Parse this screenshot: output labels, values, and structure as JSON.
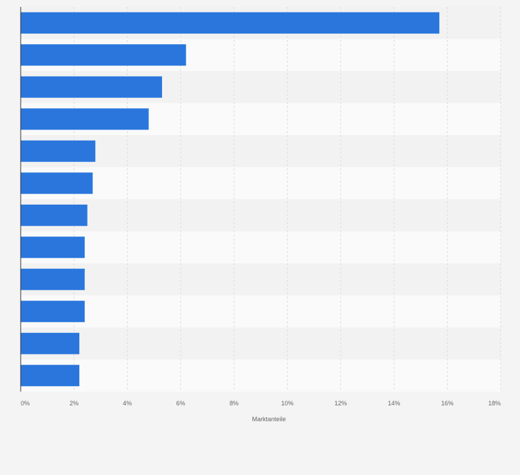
{
  "chart_data": {
    "type": "bar",
    "orientation": "horizontal",
    "categories": [
      "",
      "",
      "",
      "",
      "",
      "",
      "",
      "",
      "",
      "",
      "",
      ""
    ],
    "values": [
      15.7,
      6.2,
      5.3,
      4.8,
      2.8,
      2.7,
      2.5,
      2.4,
      2.4,
      2.4,
      2.2,
      2.2
    ],
    "xlabel": "Marktanteile",
    "ylabel": "",
    "xlim": [
      0,
      18
    ],
    "x_ticks": [
      "0%",
      "2%",
      "4%",
      "6%",
      "8%",
      "10%",
      "12%",
      "14%",
      "16%",
      "18%"
    ],
    "grid": true,
    "colors": {
      "bar": "#2a76dd",
      "band_light": "#fafafa",
      "band_dark": "#f2f2f2",
      "grid": "#dcdcdc",
      "axis": "#333333"
    }
  }
}
